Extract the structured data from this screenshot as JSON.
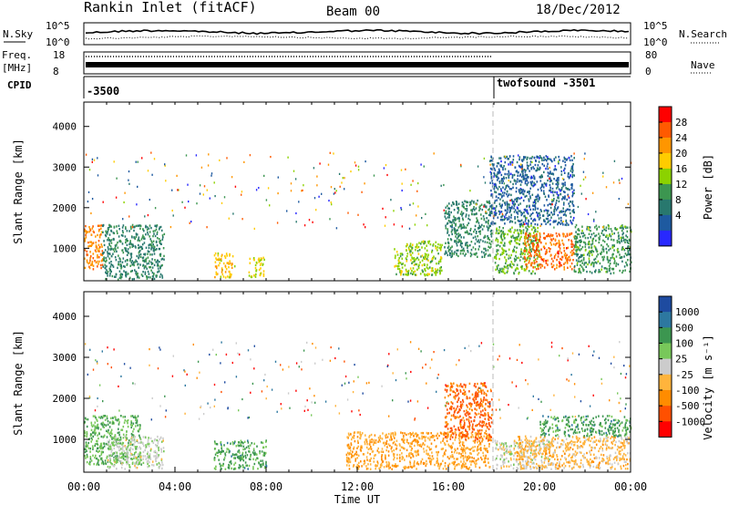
{
  "header": {
    "station": "Rankin Inlet (fitACF)",
    "beam": "Beam 00",
    "date": "18/Dec/2012"
  },
  "noise_panel": {
    "left_label": "N.Sky",
    "right_label": "N.Search",
    "y_ticks": [
      "10^5",
      "10^0"
    ]
  },
  "freq_panel": {
    "left_label": "Freq.",
    "left_unit": "[MHz]",
    "left_ticks": [
      "18",
      "8"
    ],
    "right_label": "Nave",
    "right_ticks": [
      "80",
      "0"
    ]
  },
  "cpid_panel": {
    "label": "CPID",
    "entries": [
      "-3500",
      "twofsound -3501"
    ]
  },
  "chart_data": [
    {
      "type": "heatmap",
      "panel": "power",
      "ylabel": "Slant Range [km]",
      "xlabel": "",
      "y_ticks": [
        "4000",
        "3000",
        "2000",
        "1000"
      ],
      "ylim": [
        200,
        4600
      ],
      "xlim": [
        0,
        24
      ],
      "colorbar_label": "Power [dB]",
      "colorbar_ticks": [
        "28",
        "24",
        "20",
        "16",
        "12",
        "8",
        "4"
      ],
      "colorbar_colors": [
        "#ff0000",
        "#ff5a00",
        "#ff9600",
        "#ffcc00",
        "#8cd200",
        "#3c9650",
        "#28786e",
        "#1e5aa0",
        "#2828ff"
      ],
      "regions": [
        {
          "t0": 0.0,
          "t1": 0.8,
          "r0": 500,
          "r1": 1600,
          "v": 24
        },
        {
          "t0": 0.8,
          "t1": 3.5,
          "r0": 250,
          "r1": 1600,
          "v": 10
        },
        {
          "t0": 5.7,
          "t1": 6.6,
          "r0": 300,
          "r1": 900,
          "v": 20
        },
        {
          "t0": 7.2,
          "t1": 7.9,
          "r0": 300,
          "r1": 800,
          "v": 18
        },
        {
          "t0": 13.6,
          "t1": 15.7,
          "r0": 350,
          "r1": 1200,
          "v": 16
        },
        {
          "t0": 18.0,
          "t1": 20.0,
          "r0": 400,
          "r1": 1600,
          "v": 14
        },
        {
          "t0": 19.3,
          "t1": 21.5,
          "r0": 500,
          "r1": 1400,
          "v": 26
        },
        {
          "t0": 21.5,
          "t1": 24.0,
          "r0": 400,
          "r1": 1600,
          "v": 12
        },
        {
          "t0": 15.8,
          "t1": 17.9,
          "r0": 800,
          "r1": 2200,
          "v": 10
        },
        {
          "t0": 17.8,
          "t1": 21.5,
          "r0": 1600,
          "r1": 3300,
          "v": 6
        }
      ]
    },
    {
      "type": "heatmap",
      "panel": "velocity",
      "ylabel": "Slant Range [km]",
      "xlabel": "Time UT",
      "x_ticks": [
        "00:00",
        "04:00",
        "08:00",
        "12:00",
        "16:00",
        "20:00",
        "00:00"
      ],
      "y_ticks": [
        "4000",
        "3000",
        "2000",
        "1000"
      ],
      "ylim": [
        200,
        4600
      ],
      "xlim": [
        0,
        24
      ],
      "colorbar_label": "Velocity [m s⁻¹]",
      "colorbar_ticks": [
        "1000",
        "500",
        "100",
        "25",
        "-25",
        "-100",
        "-500",
        "-1000"
      ],
      "colorbar_colors": [
        "#1e4ba0",
        "#2d78a0",
        "#3c9650",
        "#78c85a",
        "#cccccc",
        "#ffb43c",
        "#ff8c00",
        "#ff5000",
        "#ff0000"
      ],
      "regions": [
        {
          "t0": 0.0,
          "t1": 2.5,
          "r0": 400,
          "r1": 1600,
          "v": 300
        },
        {
          "t0": 1.0,
          "t1": 3.5,
          "r0": 300,
          "r1": 1100,
          "v": 50
        },
        {
          "t0": 5.7,
          "t1": 8.0,
          "r0": 300,
          "r1": 1000,
          "v": 400
        },
        {
          "t0": 11.5,
          "t1": 17.8,
          "r0": 300,
          "r1": 1200,
          "v": -300
        },
        {
          "t0": 15.8,
          "t1": 17.9,
          "r0": 1000,
          "r1": 2400,
          "v": -600
        },
        {
          "t0": 18.0,
          "t1": 20.5,
          "r0": 300,
          "r1": 1000,
          "v": 0
        },
        {
          "t0": 19.0,
          "t1": 24.0,
          "r0": 300,
          "r1": 1100,
          "v": -200
        },
        {
          "t0": 20.0,
          "t1": 24.0,
          "r0": 1100,
          "r1": 1600,
          "v": 400
        }
      ]
    }
  ]
}
